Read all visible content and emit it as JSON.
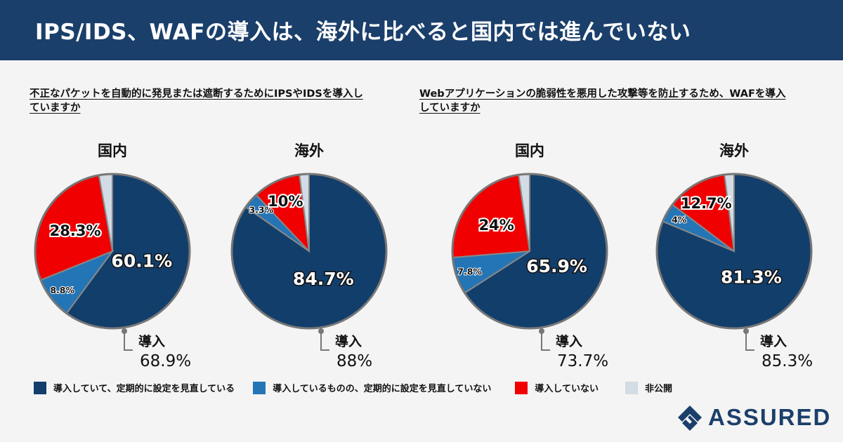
{
  "header": {
    "title": "IPS/IDS、WAFの導入は、海外に比べると国内では進んでいない"
  },
  "questions": {
    "ips": "不正なパケットを自動的に発見または遮断するためにIPSやIDSを導入していますか",
    "waf": "Webアプリケーションの脆弱性を悪用した攻撃等を防止するため、WAFを導入していますか"
  },
  "colors": {
    "regular": "#123e6b",
    "no_review": "#2475b5",
    "not_adopted": "#f00000",
    "undisclosed": "#d3dbe5",
    "header_bg": "#1b3f6b"
  },
  "legend": [
    {
      "label": "導入していて、定期的に設定を見直している",
      "color": "#123e6b"
    },
    {
      "label": "導入しているものの、定期的に設定を見直していない",
      "color": "#2475b5"
    },
    {
      "label": "導入していない",
      "color": "#f00000"
    },
    {
      "label": "非公開",
      "color": "#d3dbe5"
    }
  ],
  "chart_data": [
    {
      "type": "pie",
      "group": "IPS/IDS",
      "title": "国内",
      "categories": [
        "導入していて、定期的に設定を見直している",
        "導入しているものの、定期的に設定を見直していない",
        "導入していない",
        "非公開"
      ],
      "values": [
        60.1,
        8.8,
        28.3,
        2.8
      ],
      "labels": [
        "60.1%",
        "8.8%",
        "28.3%",
        ""
      ],
      "adopted_label": "導入",
      "adopted_value": "68.9%"
    },
    {
      "type": "pie",
      "group": "IPS/IDS",
      "title": "海外",
      "categories": [
        "導入していて、定期的に設定を見直している",
        "導入しているものの、定期的に設定を見直していない",
        "導入していない",
        "非公開"
      ],
      "values": [
        84.7,
        3.3,
        10,
        2
      ],
      "labels": [
        "84.7%",
        "3.3%",
        "10%",
        ""
      ],
      "adopted_label": "導入",
      "adopted_value": "88%"
    },
    {
      "type": "pie",
      "group": "WAF",
      "title": "国内",
      "categories": [
        "導入していて、定期的に設定を見直している",
        "導入しているものの、定期的に設定を見直していない",
        "導入していない",
        "非公開"
      ],
      "values": [
        65.9,
        7.8,
        24,
        2.3
      ],
      "labels": [
        "65.9%",
        "7.8%",
        "24%",
        ""
      ],
      "adopted_label": "導入",
      "adopted_value": "73.7%"
    },
    {
      "type": "pie",
      "group": "WAF",
      "title": "海外",
      "categories": [
        "導入していて、定期的に設定を見直している",
        "導入しているものの、定期的に設定を見直していない",
        "導入していない",
        "非公開"
      ],
      "values": [
        81.3,
        4,
        12.7,
        2
      ],
      "labels": [
        "81.3%",
        "4%",
        "12.7%",
        ""
      ],
      "adopted_label": "導入",
      "adopted_value": "85.3%"
    }
  ],
  "brand": {
    "name": "ASSURED"
  }
}
